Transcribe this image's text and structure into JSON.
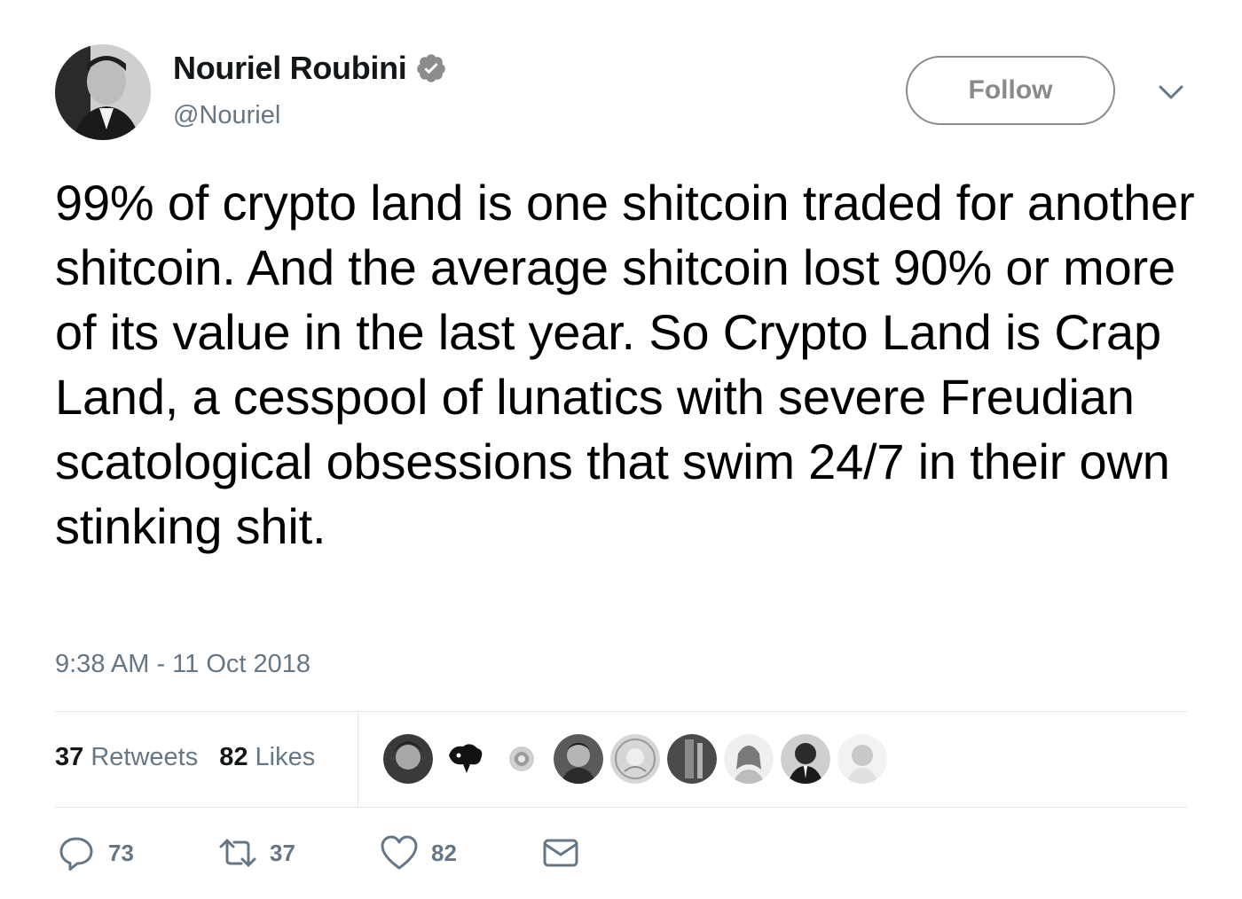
{
  "author": {
    "display_name": "Nouriel Roubini",
    "handle": "@Nouriel",
    "verified_icon": "verified-badge-icon"
  },
  "follow_button": {
    "label": "Follow"
  },
  "menu_icon": "chevron-down-icon",
  "tweet": {
    "text": "99% of crypto land is one shitcoin traded for another shitcoin. And the average shitcoin lost 90% or more of its value in the last year. So Crypto Land is Crap Land, a cesspool of lunatics with severe Freudian scatological obsessions that swim 24/7 in their own stinking shit.",
    "timestamp": "9:38 AM - 11 Oct 2018"
  },
  "stats": {
    "retweets_count": "37",
    "retweets_label": "Retweets",
    "likes_count": "82",
    "likes_label": "Likes"
  },
  "likers": [
    "avatar",
    "avatar",
    "avatar",
    "avatar",
    "avatar",
    "avatar",
    "avatar",
    "avatar",
    "avatar"
  ],
  "actions": {
    "reply_count": "73",
    "retweet_count": "37",
    "like_count": "82"
  },
  "colors": {
    "text": "#14171a",
    "secondary": "#657786",
    "divider": "#e1e8ed",
    "follow_border": "#8a8a8a"
  }
}
